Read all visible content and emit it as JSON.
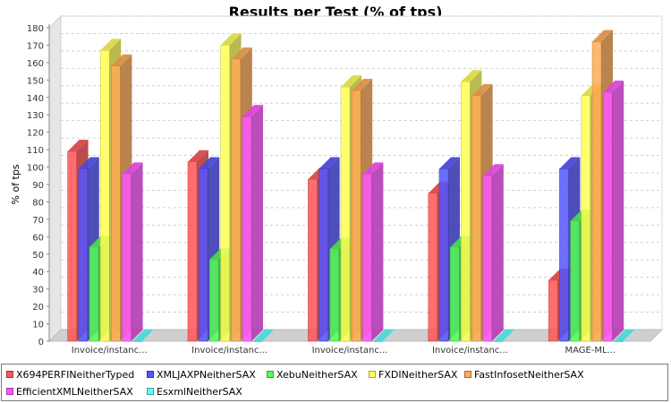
{
  "chart_data": {
    "type": "bar",
    "title": "Results per Test (% of tps)",
    "xlabel": "",
    "ylabel": "% of tps",
    "ylim": [
      0,
      180
    ],
    "yticks": [
      0,
      10,
      20,
      30,
      40,
      50,
      60,
      70,
      80,
      90,
      100,
      110,
      120,
      130,
      140,
      150,
      160,
      170,
      180
    ],
    "grid": true,
    "legend_position": "bottom",
    "categories": [
      "Invoice/instanc...",
      "Invoice/instanc...",
      "Invoice/instanc...",
      "Invoice/instanc...",
      "MAGE-ML..."
    ],
    "series": [
      {
        "name": "X694PERFINeitherTyped",
        "color": "#ff5555",
        "values": [
          109,
          103,
          93,
          85,
          35
        ]
      },
      {
        "name": "XMLJAXPNeitherSAX",
        "color": "#5555ff",
        "values": [
          99,
          99,
          99,
          99,
          99
        ]
      },
      {
        "name": "XebuNeitherSAX",
        "color": "#55ff55",
        "values": [
          54,
          47,
          53,
          54,
          69
        ]
      },
      {
        "name": "FXDINeitherSAX",
        "color": "#ffff55",
        "values": [
          167,
          170,
          146,
          149,
          141
        ]
      },
      {
        "name": "FastInfosetNeitherSAX",
        "color": "#ffaa55",
        "values": [
          158,
          162,
          144,
          141,
          172
        ]
      },
      {
        "name": "EfficientXMLNeitherSAX",
        "color": "#ff55ff",
        "values": [
          96,
          129,
          96,
          95,
          143
        ]
      },
      {
        "name": "EsxmlNeitherSAX",
        "color": "#55ffff",
        "values": [
          0,
          0,
          0,
          0,
          0
        ]
      }
    ]
  }
}
